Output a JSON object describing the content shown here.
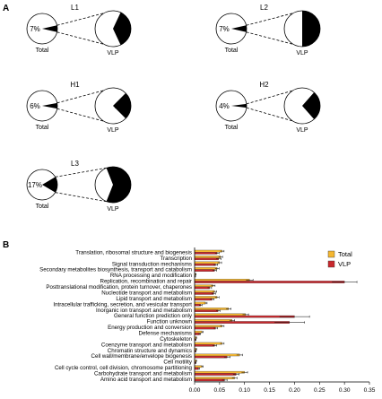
{
  "panels": {
    "a": "A",
    "b": "B"
  },
  "chart_data": [
    {
      "type": "pie",
      "panel": "A",
      "groups": [
        {
          "name": "L1",
          "total_label": "Total",
          "vlp_label": "VLP",
          "total_pct": 7,
          "vlp_pct": 36,
          "total_text": "7%",
          "vlp_text": "36%"
        },
        {
          "name": "L2",
          "total_label": "Total",
          "vlp_label": "VLP",
          "total_pct": 7,
          "vlp_pct": 50,
          "total_text": "7%",
          "vlp_text": "50%"
        },
        {
          "name": "H1",
          "total_label": "Total",
          "vlp_label": "VLP",
          "total_pct": 6,
          "vlp_pct": 25,
          "total_text": "6%",
          "vlp_text": "25%"
        },
        {
          "name": "H2",
          "total_label": "Total",
          "vlp_label": "VLP",
          "total_pct": 4,
          "vlp_pct": 27,
          "total_text": "4%",
          "vlp_text": "27%"
        },
        {
          "name": "L3",
          "total_label": "Total",
          "vlp_label": "VLP",
          "total_pct": 17,
          "vlp_pct": 62,
          "total_text": "17%",
          "vlp_text": "62%"
        }
      ]
    },
    {
      "type": "bar",
      "panel": "B",
      "orientation": "horizontal",
      "categories": [
        "Translation, ribosomal structure and biogenesis",
        "Transcription",
        "Signal transduction mechanisms",
        "Secondary metabolites biosynthesis, transport and catabolism",
        "RNA processing and modification",
        "Replication, recombination and repair",
        "Posttranslational modification, protein turnover, chaperones",
        "Nucleotide transport and metabolism",
        "Lipid transport and metabolism",
        "Intracellular trafficking, secretion, and vesicular transport",
        "Inorganic ion transport and metabolism",
        "General function prediction only",
        "Function unknown",
        "Energy production and conversion",
        "Defense mechanisms",
        "Cytoskeleton",
        "Coenzyme transport and metabolism",
        "Chromatin structure and dynamics",
        "Cell wall/membrane/envelope biogenesis",
        "Cell motility",
        "Cell cycle control, cell division, chromosome partitioning",
        "Carbohydrate transport and metabolism",
        "Amino acid transport and metabolism"
      ],
      "series": [
        {
          "name": "Total",
          "color": "#f5b731",
          "values": [
            0.055,
            0.052,
            0.05,
            0.045,
            0.002,
            0.11,
            0.037,
            0.04,
            0.045,
            0.022,
            0.068,
            0.102,
            0.075,
            0.055,
            0.015,
            0.003,
            0.055,
            0.003,
            0.09,
            0.003,
            0.015,
            0.1,
            0.08
          ],
          "errors": [
            0.004,
            0.004,
            0.004,
            0.004,
            0.001,
            0.007,
            0.004,
            0.004,
            0.004,
            0.003,
            0.005,
            0.006,
            0.005,
            0.004,
            0.002,
            0.001,
            0.004,
            0.001,
            0.006,
            0.001,
            0.002,
            0.006,
            0.005
          ]
        },
        {
          "name": "VLP",
          "color": "#c8282d",
          "values": [
            0.045,
            0.048,
            0.042,
            0.04,
            0.001,
            0.3,
            0.03,
            0.038,
            0.035,
            0.012,
            0.047,
            0.2,
            0.19,
            0.042,
            0.01,
            0.002,
            0.04,
            0.002,
            0.065,
            0.002,
            0.008,
            0.083,
            0.06
          ],
          "errors": [
            0.004,
            0.005,
            0.004,
            0.004,
            0.001,
            0.025,
            0.004,
            0.004,
            0.004,
            0.003,
            0.004,
            0.03,
            0.03,
            0.004,
            0.002,
            0.001,
            0.004,
            0.001,
            0.006,
            0.001,
            0.002,
            0.006,
            0.005
          ]
        }
      ],
      "xlim": [
        0,
        0.35
      ],
      "xticks": [
        0,
        0.05,
        0.1,
        0.15,
        0.2,
        0.25,
        0.3,
        0.35
      ],
      "xtick_labels": [
        "0.00",
        "0.05",
        "0.10",
        "0.15",
        "0.20",
        "0.25",
        "0.30",
        "0.35"
      ],
      "legend": [
        "Total",
        "VLP"
      ],
      "legend_position": "top-right",
      "grid": false
    }
  ]
}
